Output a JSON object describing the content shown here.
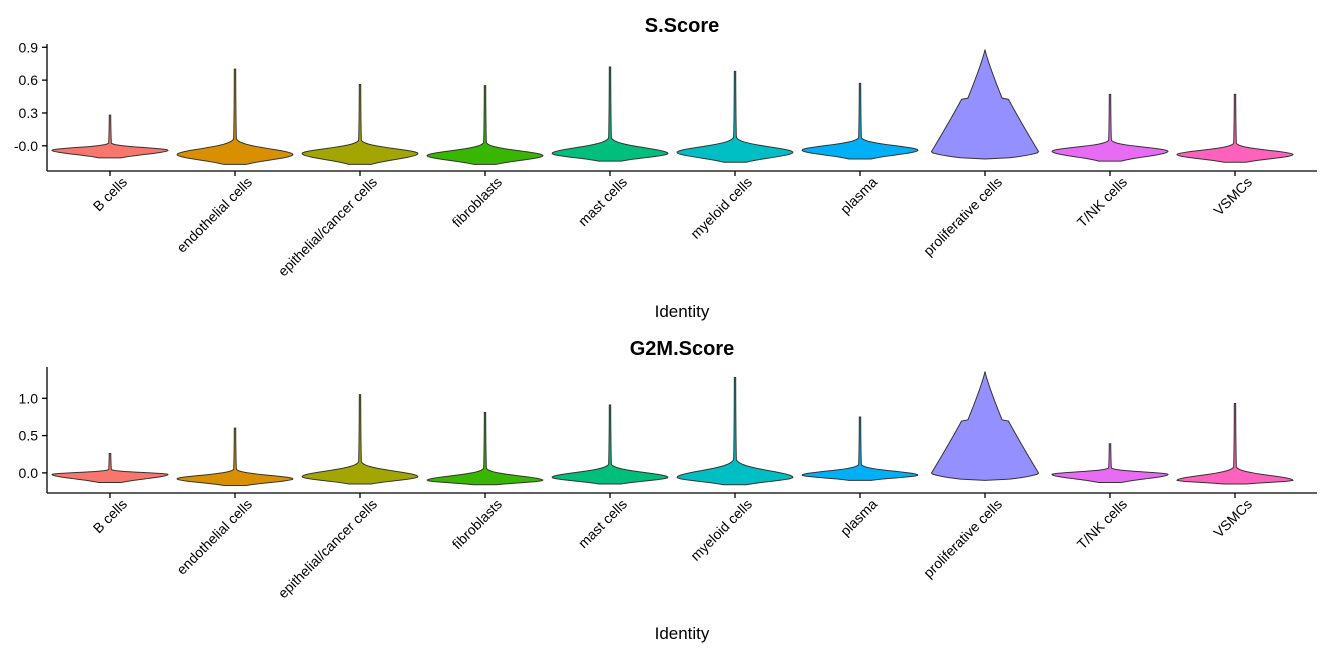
{
  "chart_data": [
    {
      "type": "violin",
      "title": "S.Score",
      "xlabel": "Identity",
      "ylabel": "",
      "ylim": [
        -0.23,
        0.93
      ],
      "yticks": [
        -0.0,
        0.3,
        0.6,
        0.9
      ],
      "ytick_labels": [
        "-0.0",
        "0.3",
        "0.6",
        "0.9"
      ],
      "categories": [
        "B cells",
        "endothelial cells",
        "epithelial/cancer cells",
        "fibroblasts",
        "mast cells",
        "myeloid cells",
        "plasma",
        "proliferative cells",
        "T/NK cells",
        "VSMCs"
      ],
      "colors": [
        "#F8766D",
        "#D89000",
        "#A3A500",
        "#39B600",
        "#00BF7D",
        "#00BFC4",
        "#00B0F6",
        "#9590FF",
        "#E76BF3",
        "#FF62BC"
      ],
      "distributions": [
        {
          "min": -0.11,
          "max": 0.28,
          "peak": -0.04
        },
        {
          "min": -0.17,
          "max": 0.7,
          "peak": -0.08
        },
        {
          "min": -0.17,
          "max": 0.56,
          "peak": -0.07
        },
        {
          "min": -0.17,
          "max": 0.55,
          "peak": -0.09
        },
        {
          "min": -0.14,
          "max": 0.72,
          "peak": -0.07
        },
        {
          "min": -0.15,
          "max": 0.68,
          "peak": -0.06
        },
        {
          "min": -0.12,
          "max": 0.57,
          "peak": -0.04
        },
        {
          "min": -0.12,
          "max": 0.88,
          "peak": 0.05
        },
        {
          "min": -0.14,
          "max": 0.47,
          "peak": -0.05
        },
        {
          "min": -0.15,
          "max": 0.47,
          "peak": -0.08
        }
      ]
    },
    {
      "type": "violin",
      "title": "G2M.Score",
      "xlabel": "Identity",
      "ylabel": "",
      "ylim": [
        -0.27,
        1.42
      ],
      "yticks": [
        0.0,
        0.5,
        1.0
      ],
      "ytick_labels": [
        "0.0",
        "0.5",
        "1.0"
      ],
      "categories": [
        "B cells",
        "endothelial cells",
        "epithelial/cancer cells",
        "fibroblasts",
        "mast cells",
        "myeloid cells",
        "plasma",
        "proliferative cells",
        "T/NK cells",
        "VSMCs"
      ],
      "colors": [
        "#F8766D",
        "#D89000",
        "#A3A500",
        "#39B600",
        "#00BF7D",
        "#00BFC4",
        "#00B0F6",
        "#9590FF",
        "#E76BF3",
        "#FF62BC"
      ],
      "distributions": [
        {
          "min": -0.13,
          "max": 0.26,
          "peak": -0.02
        },
        {
          "min": -0.17,
          "max": 0.6,
          "peak": -0.08
        },
        {
          "min": -0.15,
          "max": 1.05,
          "peak": -0.05
        },
        {
          "min": -0.16,
          "max": 0.81,
          "peak": -0.1
        },
        {
          "min": -0.15,
          "max": 0.91,
          "peak": -0.06
        },
        {
          "min": -0.16,
          "max": 1.28,
          "peak": -0.06
        },
        {
          "min": -0.1,
          "max": 0.75,
          "peak": -0.03
        },
        {
          "min": -0.1,
          "max": 1.36,
          "peak": 0.06
        },
        {
          "min": -0.13,
          "max": 0.39,
          "peak": -0.02
        },
        {
          "min": -0.15,
          "max": 0.93,
          "peak": -0.1
        }
      ]
    }
  ]
}
